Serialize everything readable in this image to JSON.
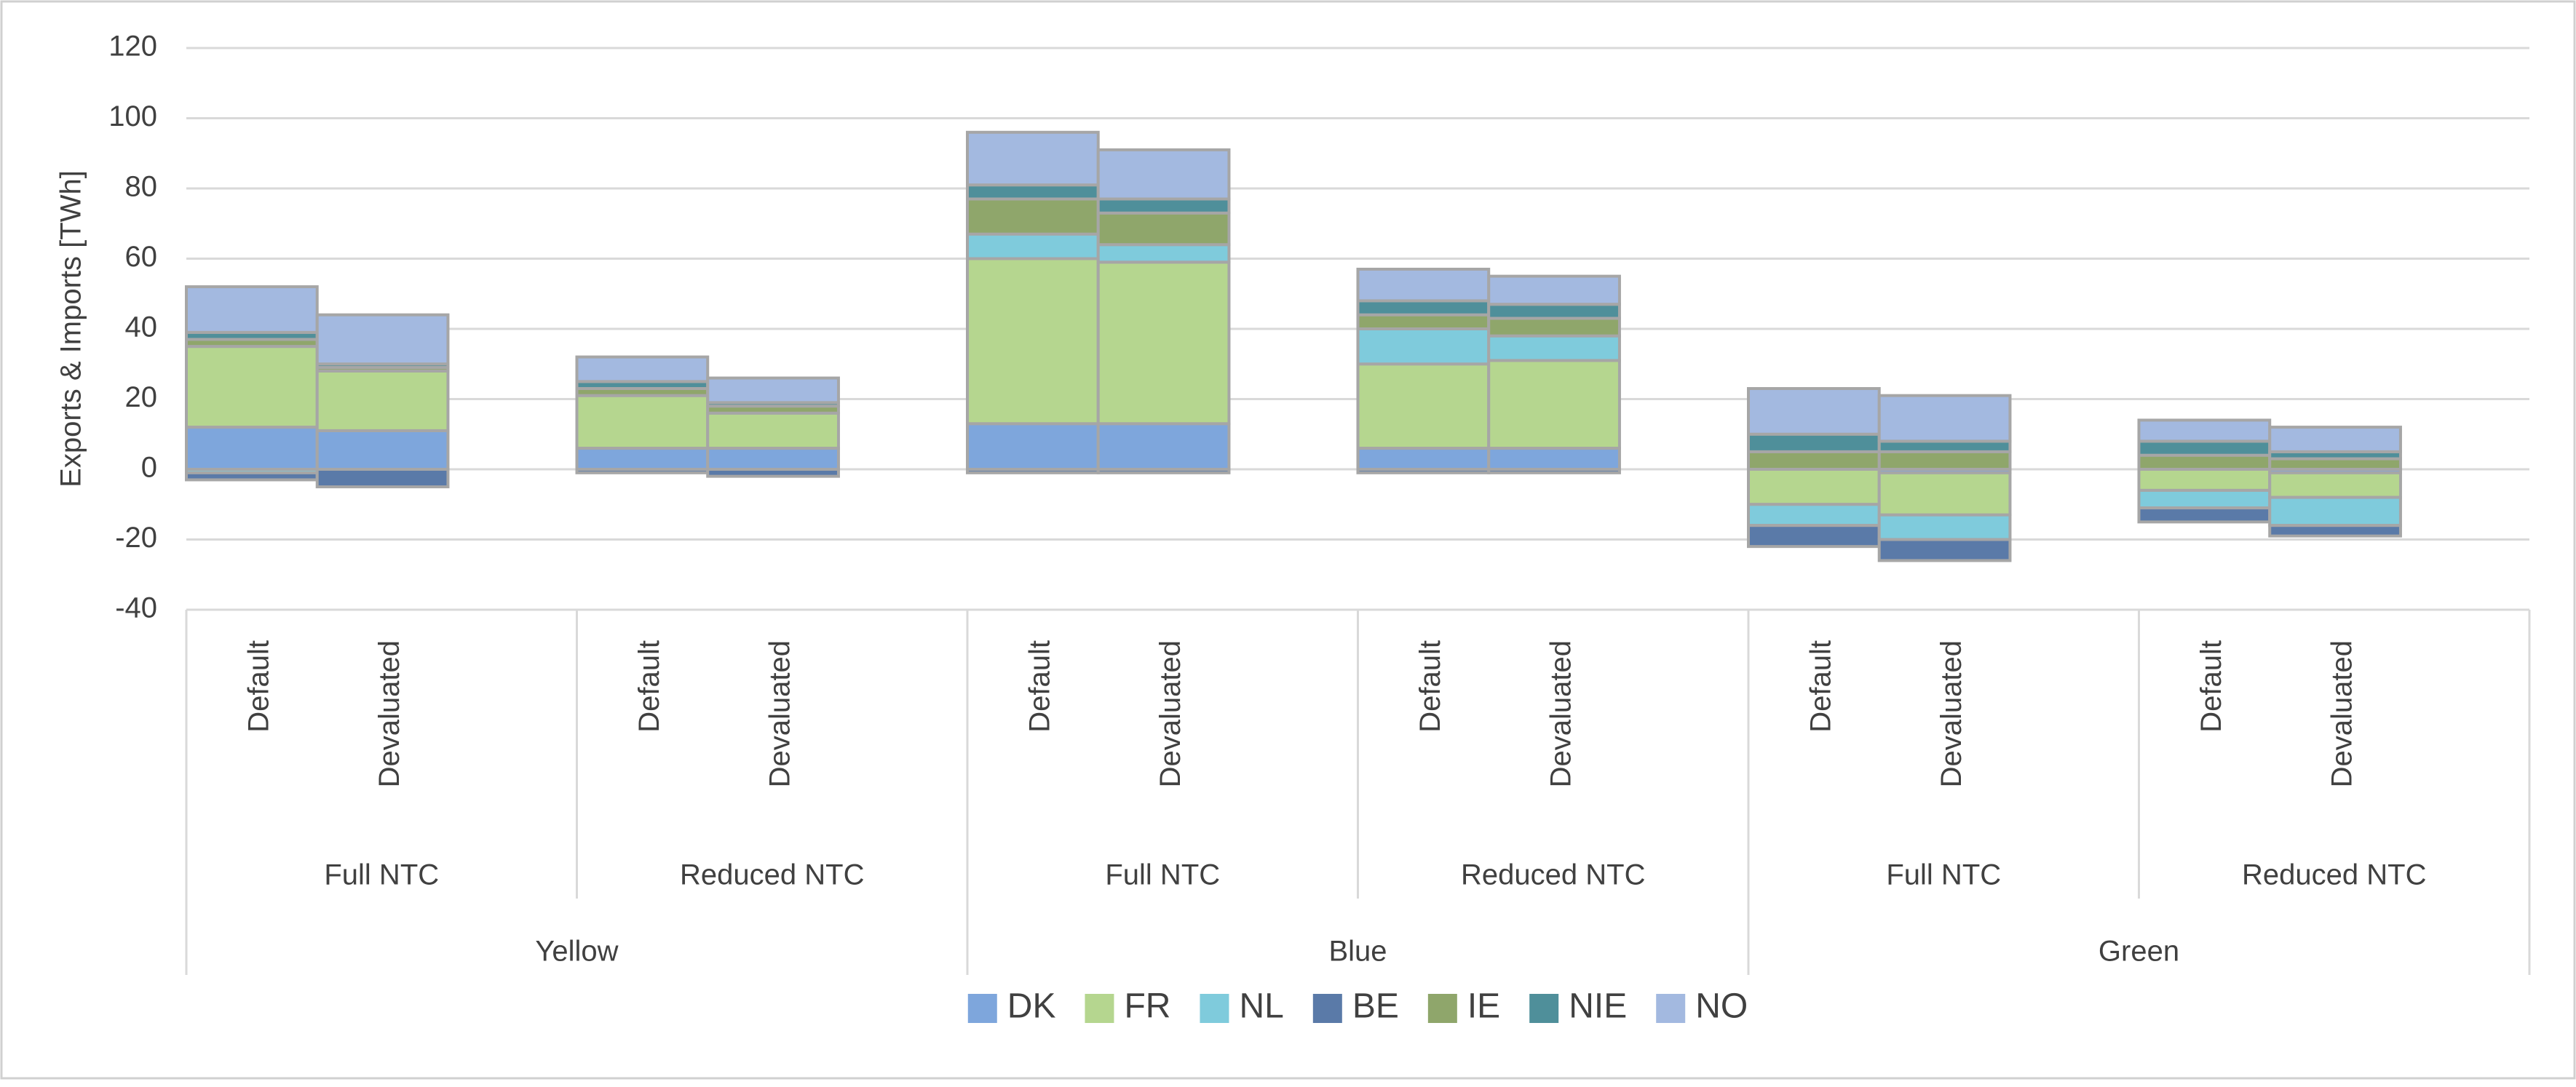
{
  "chart_data": {
    "type": "stacked_bar",
    "y_label": "Exports & Imports [TWh]",
    "category_groups": [
      {
        "label": "Yellow",
        "subgroups": [
          {
            "label": "Full NTC",
            "categories": [
              "Default",
              "Devaluated"
            ]
          },
          {
            "label": "Reduced NTC",
            "categories": [
              "Default",
              "Devaluated"
            ]
          }
        ]
      },
      {
        "label": "Blue",
        "subgroups": [
          {
            "label": "Full NTC",
            "categories": [
              "Default",
              "Devaluated"
            ]
          },
          {
            "label": "Reduced NTC",
            "categories": [
              "Default",
              "Devaluated"
            ]
          }
        ]
      },
      {
        "label": "Green",
        "subgroups": [
          {
            "label": "Full NTC",
            "categories": [
              "Default",
              "Devaluated"
            ]
          },
          {
            "label": "Reduced NTC",
            "categories": [
              "Default",
              "Devaluated"
            ]
          }
        ]
      }
    ],
    "series": [
      {
        "name": "DK",
        "color": "#7ea6dc",
        "values": [
          12,
          11,
          6,
          6,
          13,
          13,
          6,
          6,
          0,
          -1,
          0,
          -1
        ]
      },
      {
        "name": "FR",
        "color": "#b5d68f",
        "values": [
          23,
          17,
          15,
          10,
          47,
          46,
          24,
          25,
          -10,
          -12,
          -6,
          -7
        ]
      },
      {
        "name": "NL",
        "color": "#7fcbdc",
        "values": [
          -1,
          0,
          0,
          0,
          7,
          5,
          10,
          7,
          -6,
          -7,
          -5,
          -8
        ]
      },
      {
        "name": "BE",
        "color": "#5a7aa8",
        "values": [
          -2,
          -5,
          -1,
          -2,
          -1,
          -1,
          -1,
          -1,
          -6,
          -6,
          -4,
          -3
        ]
      },
      {
        "name": "IE",
        "color": "#8fa66b",
        "values": [
          2,
          1,
          2,
          2,
          10,
          9,
          4,
          5,
          5,
          5,
          4,
          3
        ]
      },
      {
        "name": "NIE",
        "color": "#4f8f9a",
        "values": [
          2,
          1,
          2,
          1,
          4,
          4,
          4,
          4,
          5,
          3,
          4,
          2
        ]
      },
      {
        "name": "NO",
        "color": "#a3b9e0",
        "values": [
          13,
          14,
          7,
          7,
          15,
          14,
          9,
          8,
          13,
          13,
          6,
          7
        ]
      }
    ],
    "ylim": [
      -40,
      120
    ],
    "yticks": [
      -40,
      -20,
      0,
      20,
      40,
      60,
      80,
      100,
      120
    ],
    "grid": true,
    "legend": "bottom"
  }
}
